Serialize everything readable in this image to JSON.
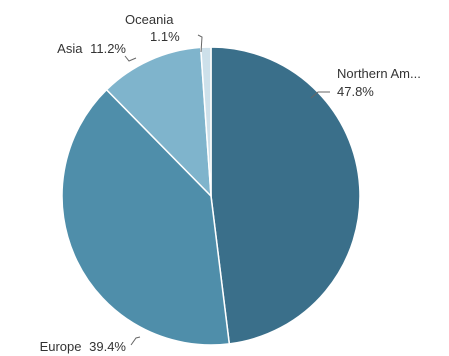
{
  "chart_data": {
    "type": "pie",
    "title": "",
    "start": "12 o'clock",
    "direction": "clockwise",
    "slices": [
      {
        "name": "Northern Am...",
        "value": 47.8,
        "label": "47.8%",
        "color": "#3a6f8a"
      },
      {
        "name": "Europe",
        "value": 39.4,
        "label": "39.4%",
        "color": "#4f8eaa"
      },
      {
        "name": "Asia",
        "value": 11.2,
        "label": "11.2%",
        "color": "#7fb4cc"
      },
      {
        "name": "Oceania",
        "value": 1.1,
        "label": "1.1%",
        "color": "#cde0ea"
      }
    ]
  }
}
